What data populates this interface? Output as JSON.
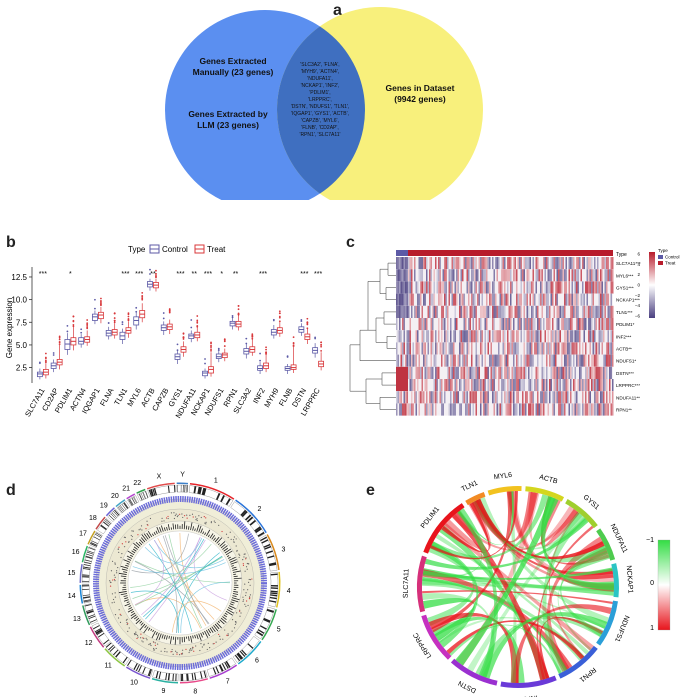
{
  "panels": {
    "a": {
      "letter": "a",
      "left_title": "Genes Extracted Manually (23 genes)",
      "left_title_lines": [
        "Genes Extracted",
        "Manually (23 genes)"
      ],
      "left_subtitle_lines": [
        "Genes Extracted by",
        "LLM (23 genes)"
      ],
      "right_title_lines": [
        "Genes in Dataset",
        "(9942 genes)"
      ],
      "overlap_lines": [
        "'SLC3A2', 'FLNA',",
        "'MYH9', 'ACTN4',",
        "'NDUFA11',",
        "'NCKAP1', 'INF2',",
        "'PDLIM1',",
        "'LRPPRC',",
        "'DSTN', 'NDUFS1', 'TLN1',",
        "'IQGAP1', 'GYS1', 'ACTB',",
        "'CAPZB', 'MYL6',",
        "'FLNB', 'CD2AP',",
        "'RPN1', 'SLC7A11'"
      ],
      "colors": {
        "left": "#5b8ff0",
        "right": "#f8f07c",
        "overlap": "#3f6fc0"
      }
    },
    "b": {
      "letter": "b",
      "legend_title": "Type",
      "legend_items": [
        "Control",
        "Treat"
      ],
      "ylabel": "Gene expression",
      "yticks": [
        "12.5",
        "10.0",
        "7.5",
        "5.0",
        "2.5"
      ],
      "colors": {
        "control": "#5c5aa6",
        "treat": "#d8373a"
      }
    },
    "c": {
      "letter": "c",
      "type_label": "Type",
      "legend_type_title": "Type",
      "legend_items": [
        "Control",
        "Treat"
      ],
      "scale_ticks": [
        "6",
        "4",
        "2",
        "0",
        "−2",
        "−4",
        "−6"
      ],
      "row_labels": [
        "SLC7A11***",
        "MYL6***",
        "GYS1***",
        "NCKAP1***",
        "TLN1***",
        "PDLIM1*",
        "INF2***",
        "ACTB**",
        "NDUFS1*",
        "DSTN***",
        "LRPPRC***",
        "NDUFA11**",
        "RPN1**"
      ]
    },
    "d": {
      "letter": "d",
      "chromosomes": [
        "1",
        "2",
        "3",
        "4",
        "5",
        "6",
        "7",
        "8",
        "9",
        "10",
        "11",
        "12",
        "13",
        "14",
        "15",
        "16",
        "17",
        "18",
        "19",
        "20",
        "21",
        "22",
        "X",
        "Y"
      ]
    },
    "e": {
      "letter": "e",
      "genes": [
        "TLN1",
        "MYL6",
        "ACTB",
        "GYS1",
        "NDUFA11",
        "NCKAP1",
        "NDUFS1",
        "RPN1",
        "INF2",
        "DSTN",
        "LRPPRC",
        "SLC7A11",
        "PDLIM1"
      ],
      "legend_ticks": [
        "1",
        "0",
        "−1"
      ]
    }
  },
  "chart_data": [
    {
      "type": "box",
      "panel": "b",
      "title": "",
      "xlabel": "",
      "ylabel": "Gene expression",
      "ylim": [
        0.8,
        13.6
      ],
      "categories": [
        "SLC7A11",
        "CD2AP",
        "PDLIM1",
        "ACTN4",
        "IQGAP1",
        "FLNA",
        "TLN1",
        "MYL6",
        "ACTB",
        "CAPZB",
        "GYS1",
        "NDUFA11",
        "NCKAP1",
        "NDUFS1",
        "RPN1",
        "SLC3A2",
        "INF2",
        "MYH9",
        "FLNB",
        "DSTN",
        "LRPPRC"
      ],
      "significance": [
        "***",
        "",
        "*",
        "",
        "",
        "",
        "***",
        "***",
        "**",
        "",
        "***",
        "**",
        "***",
        "*",
        "**",
        "",
        "***",
        "",
        "",
        "***",
        "***"
      ],
      "series": [
        {
          "name": "Control",
          "q1": [
            1.5,
            2.4,
            4.5,
            5.1,
            7.7,
            6.0,
            5.6,
            7.2,
            11.4,
            6.6,
            3.4,
            5.7,
            1.6,
            3.5,
            7.1,
            4.0,
            2.2,
            6.1,
            2.2,
            6.4,
            4.1
          ],
          "median": [
            1.8,
            2.7,
            5.1,
            5.4,
            8.1,
            6.3,
            6.0,
            7.7,
            11.7,
            6.9,
            3.7,
            6.0,
            1.9,
            3.7,
            7.4,
            4.3,
            2.4,
            6.4,
            2.4,
            6.7,
            4.4
          ],
          "q3": [
            2.0,
            3.0,
            5.6,
            5.8,
            8.4,
            6.6,
            6.4,
            8.1,
            12.0,
            7.2,
            4.0,
            6.2,
            2.1,
            4.0,
            7.6,
            4.6,
            2.7,
            6.7,
            2.6,
            7.0,
            4.7
          ],
          "min": [
            1.2,
            2.0,
            3.9,
            4.7,
            7.3,
            5.6,
            5.1,
            6.7,
            11.0,
            6.1,
            2.9,
            5.3,
            1.3,
            3.1,
            6.7,
            3.5,
            1.8,
            5.7,
            1.8,
            6.0,
            3.6
          ],
          "max": [
            2.4,
            3.4,
            6.3,
            6.2,
            8.8,
            7.0,
            6.8,
            8.6,
            12.3,
            7.6,
            4.4,
            6.6,
            2.4,
            4.4,
            8.0,
            5.1,
            3.1,
            7.2,
            2.9,
            7.4,
            5.2
          ]
        },
        {
          "name": "Treat",
          "q1": [
            1.7,
            2.8,
            5.0,
            5.3,
            7.9,
            6.1,
            6.3,
            8.0,
            11.3,
            6.7,
            4.2,
            5.8,
            1.9,
            3.6,
            7.0,
            4.2,
            2.4,
            6.3,
            2.3,
            5.6,
            2.6
          ],
          "median": [
            2.0,
            3.1,
            5.4,
            5.6,
            8.3,
            6.4,
            6.6,
            8.4,
            11.6,
            7.0,
            4.5,
            6.1,
            2.3,
            3.9,
            7.3,
            4.5,
            2.7,
            6.6,
            2.5,
            5.9,
            2.9
          ],
          "q3": [
            2.3,
            3.4,
            5.8,
            5.9,
            8.6,
            6.7,
            6.9,
            8.8,
            11.9,
            7.3,
            4.8,
            6.4,
            2.6,
            4.1,
            7.6,
            4.8,
            3.0,
            6.9,
            2.8,
            6.2,
            3.2
          ],
          "min": [
            1.3,
            2.3,
            4.4,
            4.9,
            7.4,
            5.7,
            5.8,
            7.5,
            10.9,
            6.2,
            3.7,
            5.4,
            1.5,
            3.2,
            6.6,
            3.8,
            2.0,
            5.9,
            1.9,
            5.1,
            2.2
          ],
          "max": [
            3.0,
            5.0,
            7.0,
            6.6,
            9.2,
            7.4,
            7.6,
            9.6,
            12.3,
            7.8,
            5.4,
            7.0,
            4.2,
            4.6,
            8.3,
            5.6,
            4.0,
            7.6,
            4.8,
            6.8,
            4.2
          ]
        }
      ]
    },
    {
      "type": "heatmap",
      "panel": "c",
      "rows": [
        "SLC7A11***",
        "MYL6***",
        "GYS1***",
        "NCKAP1***",
        "TLN1***",
        "PDLIM1*",
        "INF2***",
        "ACTB**",
        "NDUFS1*",
        "DSTN***",
        "LRPPRC***",
        "NDUFA11**",
        "RPN1**"
      ],
      "column_groups": [
        {
          "name": "Control",
          "fraction": 0.045
        },
        {
          "name": "Treat",
          "fraction": 0.955
        }
      ],
      "value_range": [
        -6,
        6
      ]
    },
    {
      "type": "chord",
      "panel": "e",
      "nodes": [
        "TLN1",
        "MYL6",
        "ACTB",
        "GYS1",
        "NDUFA11",
        "NCKAP1",
        "NDUFS1",
        "RPN1",
        "INF2",
        "DSTN",
        "LRPPRC",
        "SLC7A11",
        "PDLIM1"
      ],
      "value_range": [
        -1,
        1
      ]
    }
  ]
}
